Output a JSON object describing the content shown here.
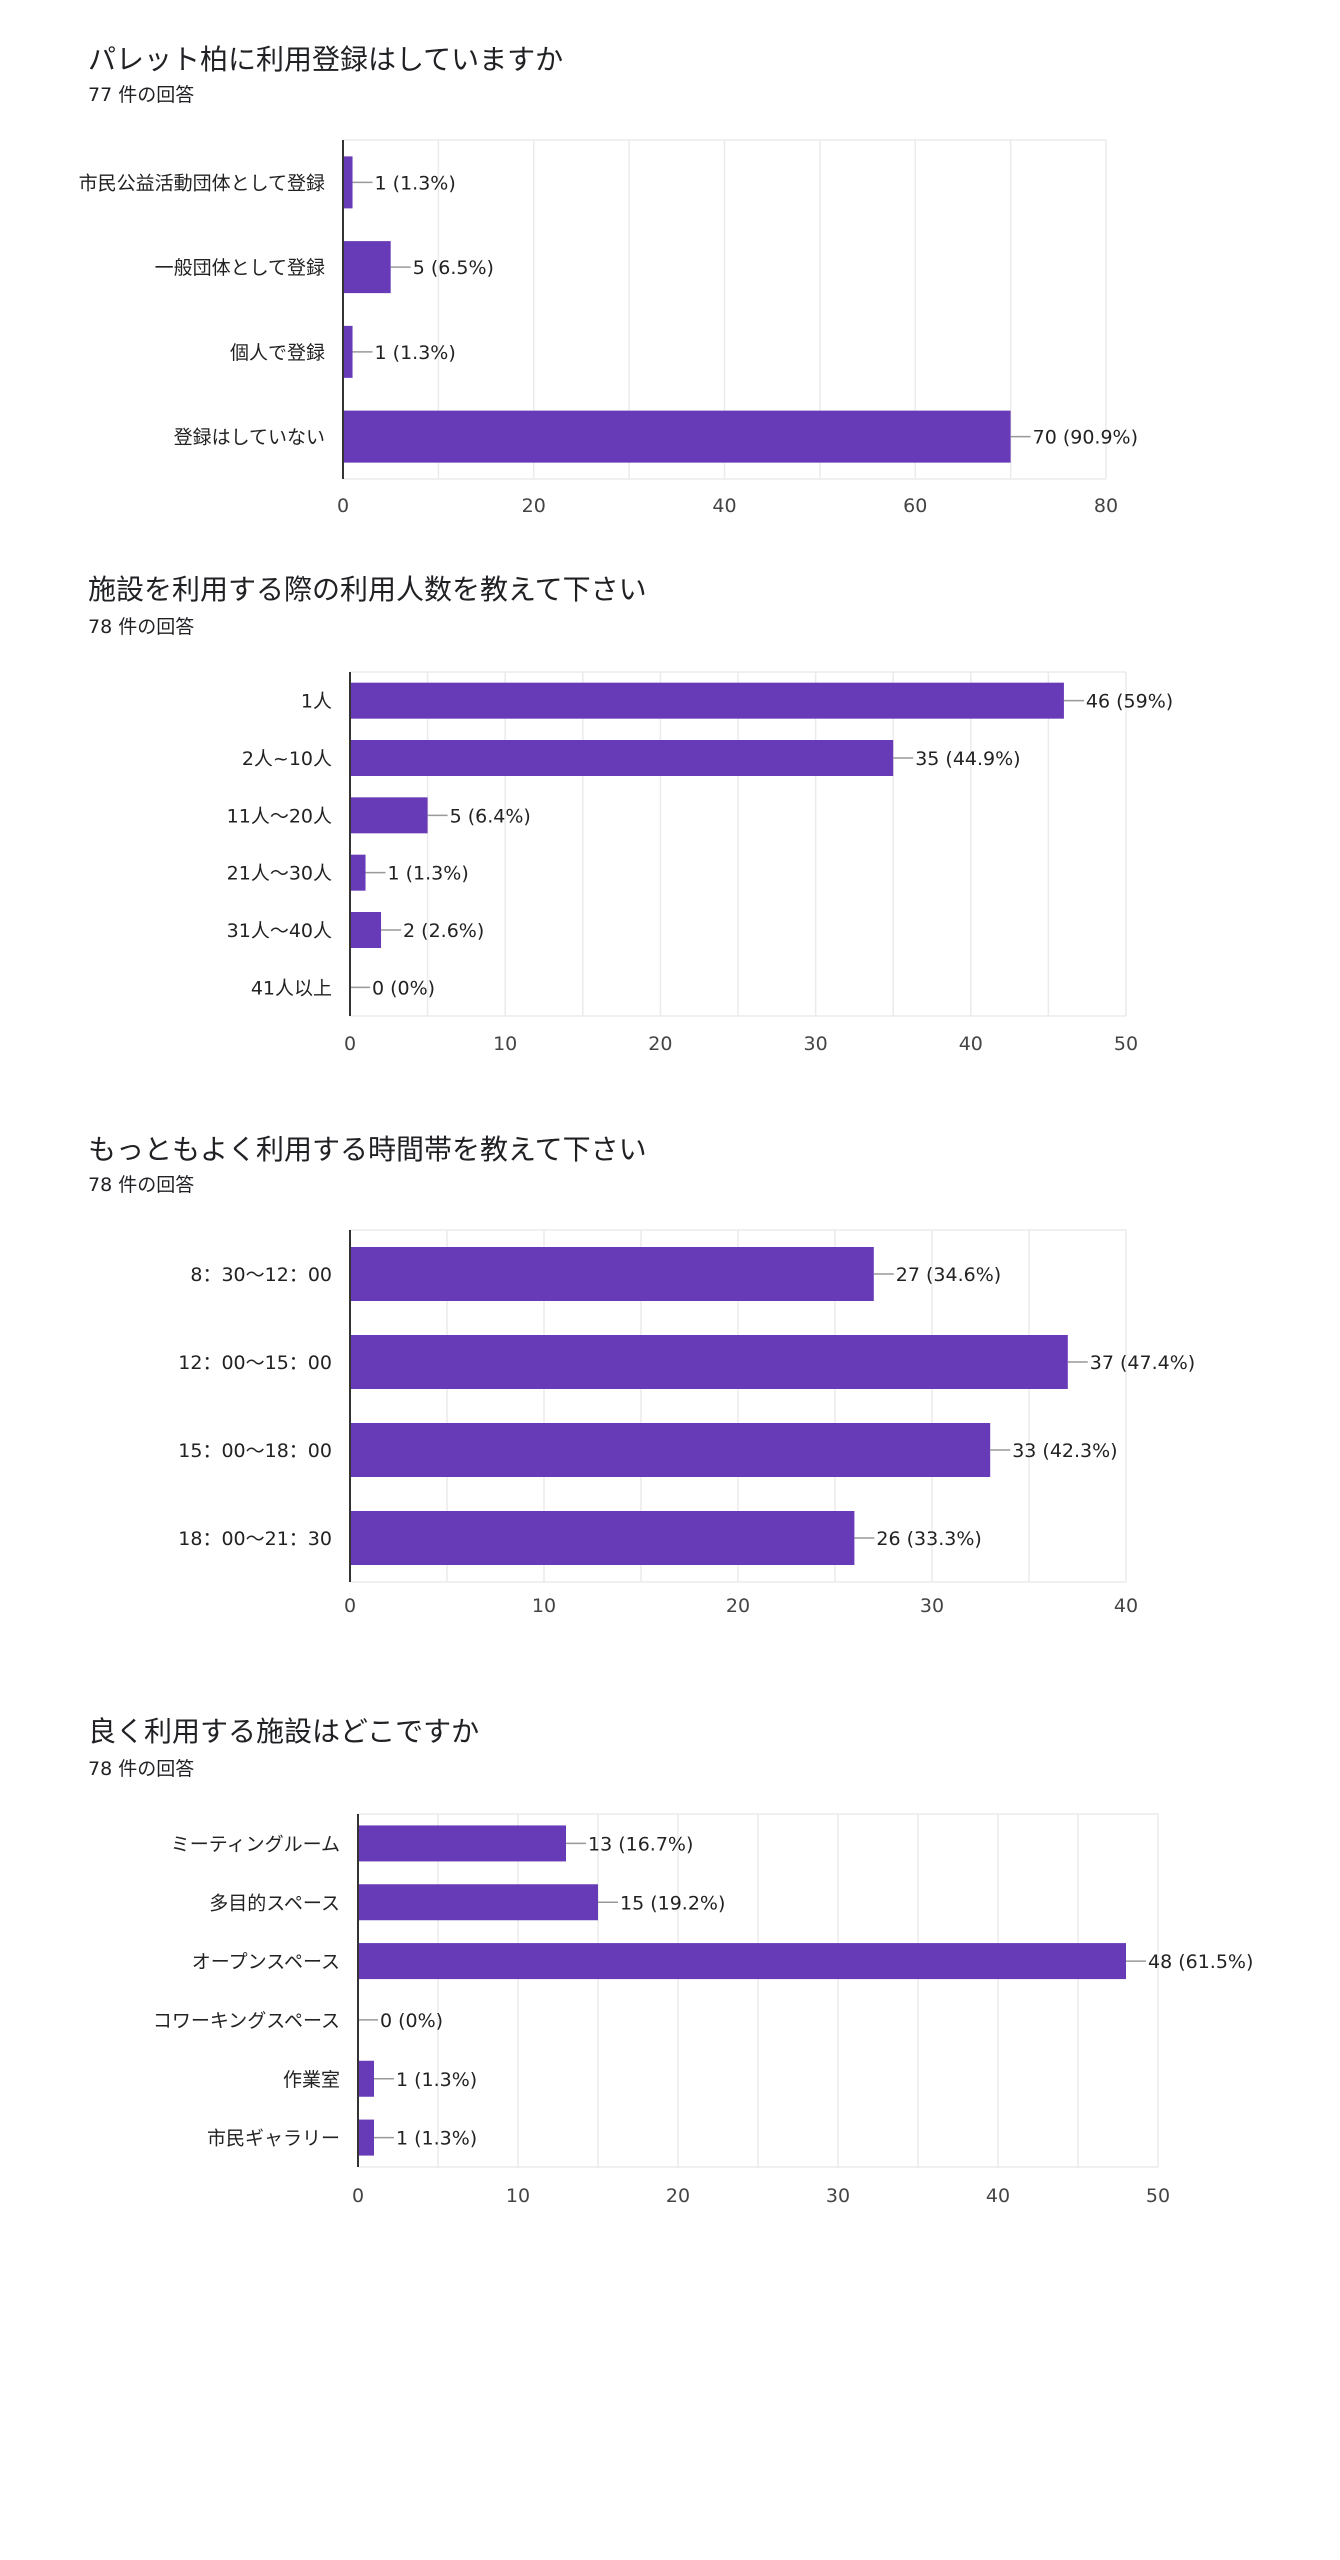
{
  "bar_color": "#673ab7",
  "chart_data": [
    {
      "type": "bar",
      "orientation": "horizontal",
      "title": "パレット柏に利用登録はしていますか",
      "subtitle": "77 件の回答",
      "categories": [
        "市民公益活動団体として登録",
        "一般団体として登録",
        "個人で登録",
        "登録はしていない"
      ],
      "values": [
        1,
        5,
        1,
        70
      ],
      "data_labels": [
        "1 (1.3%)",
        "5 (6.5%)",
        "1 (1.3%)",
        "70 (90.9%)"
      ],
      "xlim": [
        0,
        80
      ],
      "ticks": [
        "0",
        "20",
        "40",
        "60",
        "80"
      ],
      "grid_step": 10
    },
    {
      "type": "bar",
      "orientation": "horizontal",
      "title": "施設を利用する際の利用人数を教えて下さい",
      "subtitle": "78 件の回答",
      "categories": [
        "1人",
        "2人~10人",
        "11人～20人",
        "21人～30人",
        "31人～40人",
        "41人以上"
      ],
      "values": [
        46,
        35,
        5,
        1,
        2,
        0
      ],
      "data_labels": [
        "46 (59%)",
        "35 (44.9%)",
        "5 (6.4%)",
        "1 (1.3%)",
        "2 (2.6%)",
        "0 (0%)"
      ],
      "xlim": [
        0,
        50
      ],
      "ticks": [
        "0",
        "10",
        "20",
        "30",
        "40",
        "50"
      ],
      "grid_step": 5
    },
    {
      "type": "bar",
      "orientation": "horizontal",
      "title": "もっともよく利用する時間帯を教えて下さい",
      "subtitle": "78 件の回答",
      "categories": [
        "8：30〜12：00",
        "12：00〜15：00",
        "15：00〜18：00",
        "18：00〜21：30"
      ],
      "values": [
        27,
        37,
        33,
        26
      ],
      "data_labels": [
        "27 (34.6%)",
        "37 (47.4%)",
        "33 (42.3%)",
        "26 (33.3%)"
      ],
      "xlim": [
        0,
        40
      ],
      "ticks": [
        "0",
        "10",
        "20",
        "30",
        "40"
      ],
      "grid_step": 5
    },
    {
      "type": "bar",
      "orientation": "horizontal",
      "title": "良く利用する施設はどこですか",
      "subtitle": "78 件の回答",
      "categories": [
        "ミーティングルーム",
        "多目的スペース",
        "オープンスペース",
        "コワーキングスペース",
        "作業室",
        "市民ギャラリー"
      ],
      "values": [
        13,
        15,
        48,
        0,
        1,
        1
      ],
      "data_labels": [
        "13 (16.7%)",
        "15 (19.2%)",
        "48 (61.5%)",
        "0 (0%)",
        "1 (1.3%)",
        "1 (1.3%)"
      ],
      "xlim": [
        0,
        50
      ],
      "ticks": [
        "0",
        "10",
        "20",
        "30",
        "40",
        "50"
      ],
      "grid_step": 5
    }
  ]
}
